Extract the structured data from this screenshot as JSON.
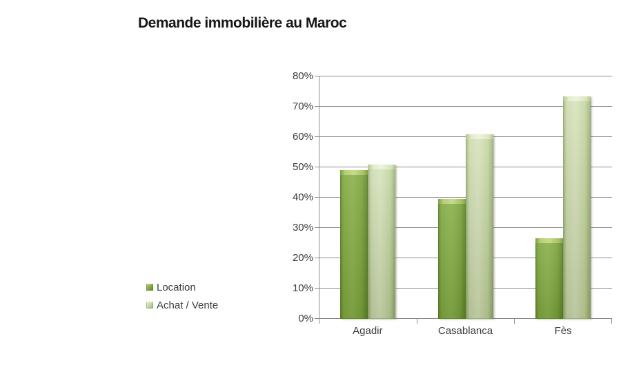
{
  "title": {
    "text": "Demande immobilière au Maroc",
    "color": "#161616"
  },
  "chart_data": {
    "type": "bar",
    "title": "Demande immobilière au Maroc",
    "categories": [
      "Agadir",
      "Casablanca",
      "Fès"
    ],
    "series": [
      {
        "name": "Location",
        "color": "#7fa83e",
        "values": [
          49,
          39.5,
          26.5
        ]
      },
      {
        "name": "Achat / Vente",
        "color": "#c3d5a1",
        "values": [
          51,
          61,
          73.5
        ]
      }
    ],
    "xlabel": "",
    "ylabel": "",
    "ylim": [
      0,
      80
    ],
    "ytick_step": 10,
    "ytick_labels": [
      "0%",
      "10%",
      "20%",
      "30%",
      "40%",
      "50%",
      "60%",
      "70%",
      "80%"
    ],
    "grid": true,
    "gridline_color": "#8a8a8a",
    "axis_text_color": "#3b3b3b",
    "legend_position": "left-bottom",
    "background": "#ffffff"
  }
}
